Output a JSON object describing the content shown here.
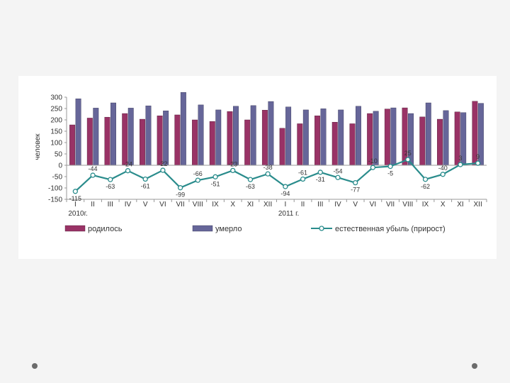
{
  "chart_data": {
    "type": "bar",
    "ylabel": "человек",
    "ylim": [
      -150,
      300
    ],
    "yticks": [
      "300",
      "250",
      "200",
      "150",
      "100",
      "50",
      "0",
      "-50",
      "-100",
      "-150"
    ],
    "categories": [
      "I",
      "II",
      "III",
      "IV",
      "V",
      "VI",
      "VII",
      "VIII",
      "IX",
      "X",
      "XI",
      "XII",
      "I",
      "II",
      "III",
      "IV",
      "V",
      "VI",
      "VII",
      "VIII",
      "IX",
      "X",
      "XI",
      "XII"
    ],
    "year_labels": [
      "2010г.",
      "2011 г."
    ],
    "series": [
      {
        "name": "родилось",
        "kind": "bar",
        "color": "#993366",
        "values": [
          178,
          208,
          212,
          228,
          203,
          218,
          222,
          200,
          193,
          237,
          200,
          243,
          163,
          183,
          218,
          190,
          183,
          228,
          248,
          253,
          213,
          203,
          235,
          282
        ]
      },
      {
        "name": "умерло",
        "kind": "bar",
        "color": "#666699",
        "values": [
          293,
          252,
          275,
          252,
          262,
          240,
          321,
          266,
          244,
          260,
          263,
          281,
          257,
          244,
          249,
          244,
          260,
          238,
          253,
          228,
          275,
          241,
          232,
          273
        ]
      },
      {
        "name": "естественная убыль (прирост)",
        "kind": "line",
        "color": "#2a8c8c",
        "values": [
          -115,
          -44,
          -63,
          -24,
          -61,
          -22,
          -99,
          -66,
          -51,
          -23,
          -63,
          -38,
          -94,
          -61,
          -31,
          -54,
          -77,
          -10,
          -5,
          25,
          -62,
          -40,
          3,
          9
        ],
        "labels": [
          "-115",
          "-44",
          "-63",
          "-24",
          "-61",
          "-22",
          "-99",
          "-66",
          "-51",
          "-23",
          "-63",
          "-38",
          "-94",
          "-61",
          "-31",
          "-54",
          "-77",
          "-10",
          "-5",
          "25",
          "-62",
          "-40",
          "3",
          "9"
        ]
      }
    ],
    "legend_position": "bottom",
    "grid": false
  }
}
